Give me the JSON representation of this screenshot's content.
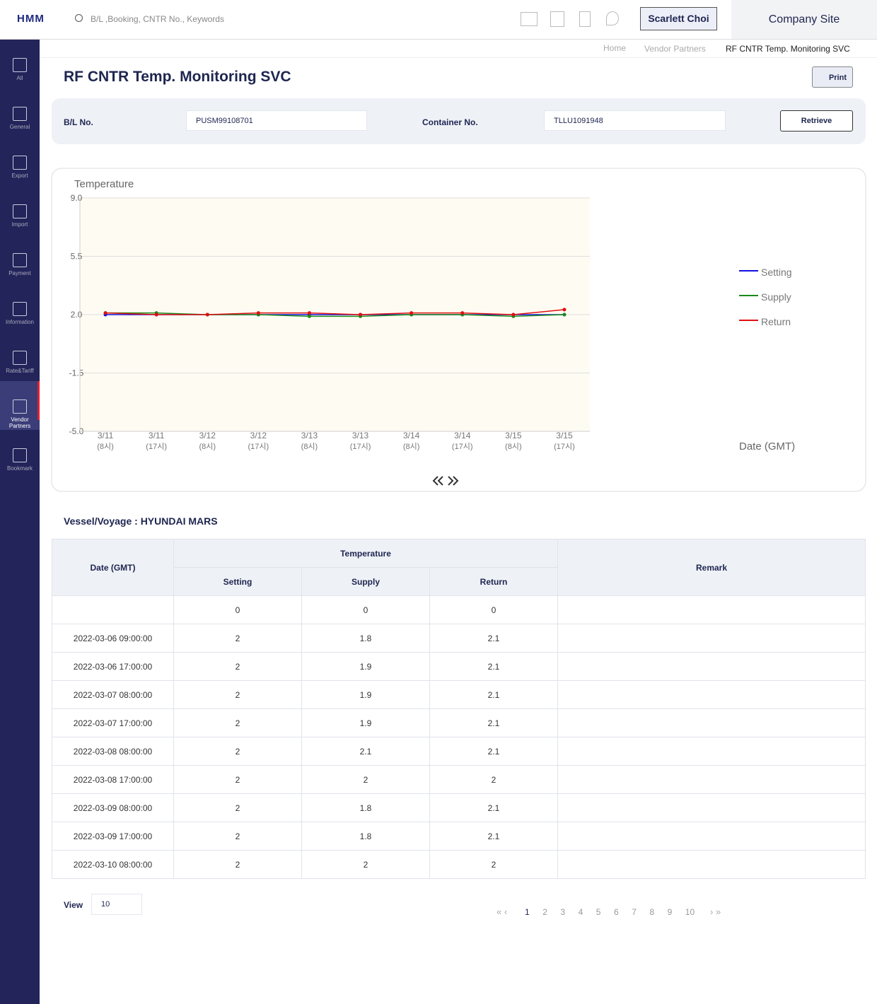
{
  "header": {
    "logo": "HMM",
    "search_placeholder": "B/L ,Booking, CNTR No., Keywords",
    "user": "Scarlett Choi",
    "company_site": "Company Site"
  },
  "sidebar": [
    "All",
    "General",
    "Export",
    "Import",
    "Payment",
    "Information",
    "Rate&Tariff",
    "Vendor Partners",
    "Bookmark"
  ],
  "breadcrumb": [
    "Home",
    "Vendor Partners",
    "RF CNTR Temp. Monitoring SVC"
  ],
  "page_title": "RF CNTR Temp. Monitoring SVC",
  "print_button": "Print",
  "search": {
    "bl_label": "B/L No.",
    "bl_value": "PUSM99108701",
    "container_label": "Container No.",
    "container_value": "TLLU1091948",
    "retrieve": "Retrieve"
  },
  "chart": {
    "type": "line",
    "y_label": "Temperature",
    "x_label": "Date (GMT)",
    "categories": [
      [
        "3/11",
        "(8시)"
      ],
      [
        "3/11",
        "(17시)"
      ],
      [
        "3/12",
        "(8시)"
      ],
      [
        "3/12",
        "(17시)"
      ],
      [
        "3/13",
        "(8시)"
      ],
      [
        "3/13",
        "(17시)"
      ],
      [
        "3/14",
        "(8시)"
      ],
      [
        "3/14",
        "(17시)"
      ],
      [
        "3/15",
        "(8시)"
      ],
      [
        "3/15",
        "(17시)"
      ]
    ],
    "series": [
      {
        "name": "Setting",
        "color": "#1010e0",
        "values": [
          2,
          2,
          2,
          2,
          2,
          2,
          2,
          2,
          2,
          2
        ]
      },
      {
        "name": "Supply",
        "color": "#1a8a1a",
        "values": [
          2.1,
          2.1,
          2,
          2,
          1.9,
          1.9,
          2,
          2,
          1.9,
          2
        ]
      },
      {
        "name": "Return",
        "color": "#e01010",
        "values": [
          2.1,
          2,
          2,
          2.1,
          2.1,
          2,
          2.1,
          2.1,
          2,
          2.3
        ]
      }
    ],
    "ylim": [
      -5,
      9
    ],
    "yticks": [
      {
        "value": -5,
        "label": "-5.0"
      },
      {
        "value": -1.5,
        "label": "-1.5"
      },
      {
        "value": 2,
        "label": "2.0"
      },
      {
        "value": 5.5,
        "label": "5.5"
      },
      {
        "value": 9,
        "label": "9.0"
      }
    ],
    "grid": true
  },
  "vessel": "Vessel/Voyage : HYUNDAI MARS",
  "table": {
    "headers": {
      "date": "Date (GMT)",
      "temperature": "Temperature",
      "setting": "Setting",
      "supply": "Supply",
      "return": "Return",
      "remark": "Remark"
    },
    "rows": [
      [
        null,
        0,
        0,
        0
      ],
      [
        "2022-03-06 09:00:00",
        2,
        1.8,
        2.1
      ],
      [
        "2022-03-06 17:00:00",
        2,
        1.9,
        2.1
      ],
      [
        "2022-03-07 08:00:00",
        2,
        1.9,
        2.1
      ],
      [
        "2022-03-07 17:00:00",
        2,
        1.9,
        2.1
      ],
      [
        "2022-03-08 08:00:00",
        2,
        2.1,
        2.1
      ],
      [
        "2022-03-08 17:00:00",
        2,
        2,
        2
      ],
      [
        "2022-03-09 08:00:00",
        2,
        1.8,
        2.1
      ],
      [
        "2022-03-09 17:00:00",
        2,
        1.8,
        2.1
      ],
      [
        "2022-03-10 08:00:00",
        2,
        2,
        2
      ]
    ]
  },
  "pagination": {
    "view_label": "View",
    "view_value": "10",
    "pages": [
      1,
      2,
      3,
      4,
      5,
      6,
      7,
      8,
      9,
      10
    ]
  }
}
